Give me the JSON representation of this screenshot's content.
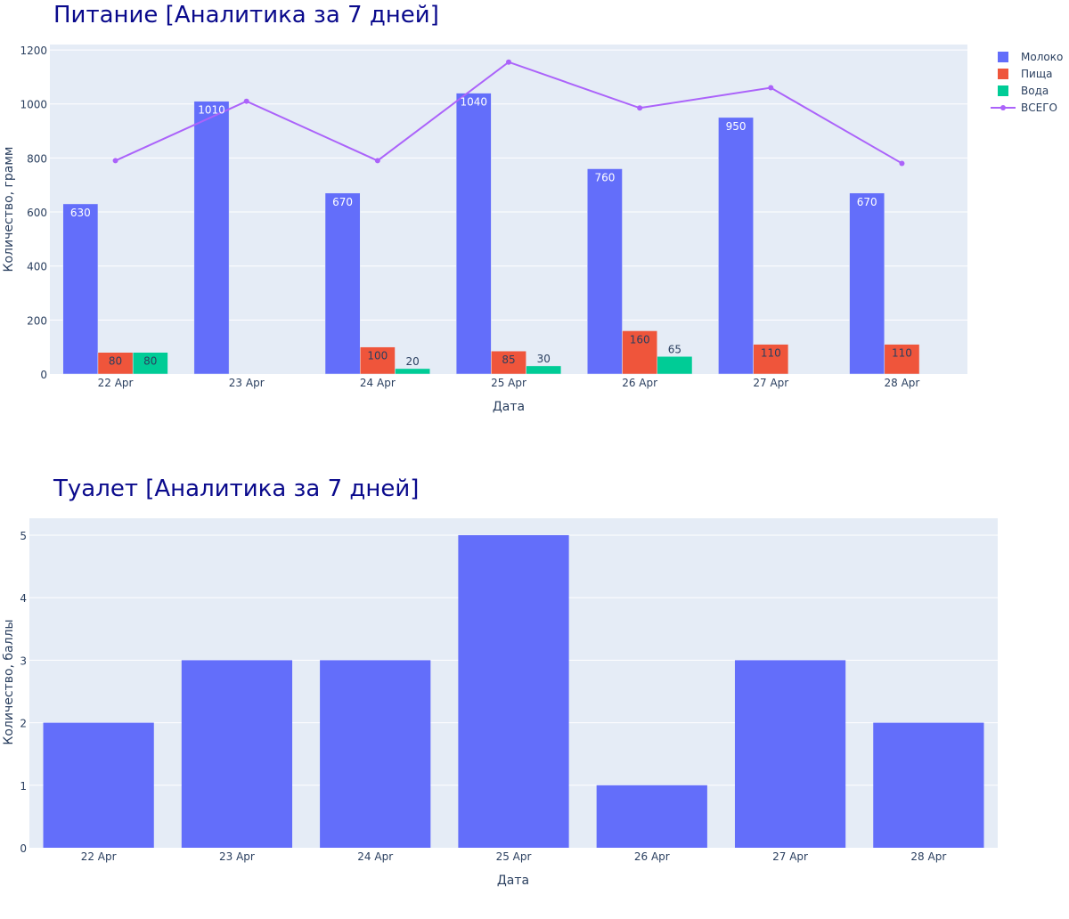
{
  "chart_data": [
    {
      "type": "bar",
      "title": "Питание [Аналитика за 7 дней]",
      "xlabel": "Дата",
      "ylabel": "Количество, грамм",
      "categories": [
        "22 Apr",
        "23 Apr",
        "24 Apr",
        "25 Apr",
        "26 Apr",
        "27 Apr",
        "28 Apr"
      ],
      "ylim": [
        0,
        1220
      ],
      "yticks": [
        0,
        200,
        400,
        600,
        800,
        1000,
        1200
      ],
      "grid": true,
      "legend_position": "right",
      "series": [
        {
          "name": "Молоко",
          "kind": "bar",
          "color": "#636efa",
          "values": [
            630,
            1010,
            670,
            1040,
            760,
            950,
            670
          ]
        },
        {
          "name": "Пища",
          "kind": "bar",
          "color": "#ef553b",
          "values": [
            80,
            null,
            100,
            85,
            160,
            110,
            110
          ]
        },
        {
          "name": "Вода",
          "kind": "bar",
          "color": "#00cc96",
          "values": [
            80,
            null,
            20,
            30,
            65,
            null,
            null
          ]
        },
        {
          "name": "ВСЕГО",
          "kind": "line",
          "color": "#ab63fa",
          "values": [
            790,
            1010,
            790,
            1155,
            985,
            1060,
            780
          ]
        }
      ]
    },
    {
      "type": "bar",
      "title": "Туалет [Аналитика за 7 дней]",
      "xlabel": "Дата",
      "ylabel": "Количество, баллы",
      "categories": [
        "22 Apr",
        "23 Apr",
        "24 Apr",
        "25 Apr",
        "26 Apr",
        "27 Apr",
        "28 Apr"
      ],
      "ylim": [
        0,
        5.27
      ],
      "yticks": [
        0,
        1,
        2,
        3,
        4,
        5
      ],
      "grid": true,
      "series": [
        {
          "name": "",
          "kind": "bar",
          "color": "#636efa",
          "values": [
            2,
            3,
            3,
            5,
            1,
            3,
            2
          ]
        }
      ]
    }
  ]
}
